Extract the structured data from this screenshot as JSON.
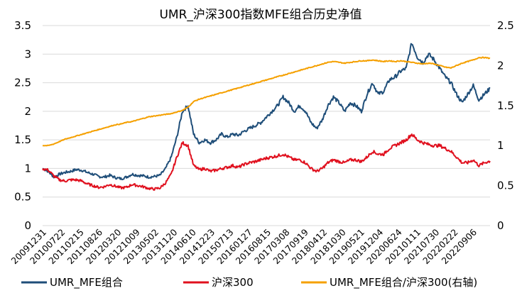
{
  "chart_data": {
    "type": "line",
    "title": "UMR_沪深300指数MFE组合历史净值",
    "left_axis": {
      "ylim": [
        0,
        3.5
      ],
      "ticks": [
        "0",
        "0.5",
        "1",
        "1.5",
        "2",
        "2.5",
        "3",
        "3.5"
      ]
    },
    "right_axis": {
      "ylim": [
        0,
        2.5
      ],
      "ticks": [
        "0",
        "0.5",
        "1",
        "1.5",
        "2",
        "2.5"
      ]
    },
    "x_tick_labels": [
      "20091231",
      "20100722",
      "20110215",
      "20110826",
      "20120320",
      "20121009",
      "20130502",
      "20131120",
      "20140610",
      "20141223",
      "20150713",
      "20160127",
      "20160815",
      "20170308",
      "20170919",
      "20180412",
      "20181030",
      "20190521",
      "20191204",
      "20200624",
      "20210111",
      "20210730",
      "20220222",
      "20220906"
    ],
    "grid": "horizontal",
    "legend_position": "bottom",
    "series": [
      {
        "name": "UMR_MFE组合",
        "axis": "left",
        "color": "#1f4e79",
        "values": [
          1.0,
          0.95,
          0.85,
          0.9,
          0.93,
          0.95,
          0.98,
          0.97,
          0.93,
          0.9,
          0.86,
          0.85,
          0.88,
          0.84,
          0.82,
          0.85,
          0.9,
          0.88,
          0.87,
          0.85,
          0.86,
          0.88,
          1.0,
          1.2,
          1.55,
          2.0,
          2.1,
          1.6,
          1.45,
          1.5,
          1.45,
          1.5,
          1.6,
          1.55,
          1.6,
          1.58,
          1.65,
          1.7,
          1.75,
          1.8,
          1.9,
          2.0,
          2.1,
          2.25,
          2.15,
          2.0,
          2.1,
          2.0,
          1.8,
          1.7,
          1.85,
          2.1,
          2.25,
          2.15,
          2.0,
          2.15,
          2.1,
          2.0,
          2.3,
          2.5,
          2.3,
          2.35,
          2.55,
          2.6,
          2.7,
          2.75,
          3.2,
          2.95,
          2.85,
          3.0,
          2.9,
          2.75,
          2.6,
          2.5,
          2.3,
          2.15,
          2.3,
          2.45,
          2.2,
          2.3,
          2.4
        ]
      },
      {
        "name": "沪深300",
        "axis": "left",
        "color": "#e0101e",
        "values": [
          1.0,
          0.97,
          0.87,
          0.8,
          0.78,
          0.8,
          0.8,
          0.78,
          0.73,
          0.7,
          0.67,
          0.68,
          0.72,
          0.69,
          0.66,
          0.67,
          0.72,
          0.7,
          0.68,
          0.65,
          0.64,
          0.66,
          0.75,
          0.9,
          1.2,
          1.45,
          1.4,
          1.05,
          0.98,
          1.0,
          0.95,
          0.97,
          1.0,
          1.02,
          1.05,
          1.02,
          1.07,
          1.1,
          1.12,
          1.15,
          1.18,
          1.2,
          1.22,
          1.25,
          1.2,
          1.15,
          1.15,
          1.1,
          1.0,
          0.95,
          1.0,
          1.1,
          1.15,
          1.12,
          1.1,
          1.15,
          1.15,
          1.12,
          1.2,
          1.3,
          1.25,
          1.25,
          1.35,
          1.4,
          1.45,
          1.5,
          1.6,
          1.5,
          1.45,
          1.42,
          1.4,
          1.4,
          1.35,
          1.3,
          1.2,
          1.1,
          1.1,
          1.15,
          1.05,
          1.1,
          1.13
        ]
      },
      {
        "name": "UMR_MFE组合/沪深300(右轴)",
        "axis": "right",
        "color": "#f5a000",
        "values": [
          1.0,
          1.0,
          1.02,
          1.05,
          1.08,
          1.1,
          1.12,
          1.14,
          1.16,
          1.18,
          1.2,
          1.22,
          1.24,
          1.26,
          1.27,
          1.29,
          1.3,
          1.32,
          1.34,
          1.36,
          1.37,
          1.38,
          1.39,
          1.4,
          1.42,
          1.44,
          1.48,
          1.55,
          1.58,
          1.6,
          1.62,
          1.64,
          1.66,
          1.68,
          1.7,
          1.72,
          1.74,
          1.76,
          1.78,
          1.8,
          1.82,
          1.84,
          1.86,
          1.88,
          1.9,
          1.92,
          1.94,
          1.96,
          1.98,
          2.0,
          2.02,
          2.04,
          2.05,
          2.04,
          2.03,
          2.04,
          2.05,
          2.06,
          2.06,
          2.07,
          2.06,
          2.05,
          2.06,
          2.05,
          2.06,
          2.05,
          2.04,
          2.03,
          2.02,
          2.03,
          2.02,
          2.0,
          1.98,
          1.97,
          2.0,
          2.03,
          2.05,
          2.07,
          2.1,
          2.1,
          2.09
        ]
      }
    ]
  }
}
